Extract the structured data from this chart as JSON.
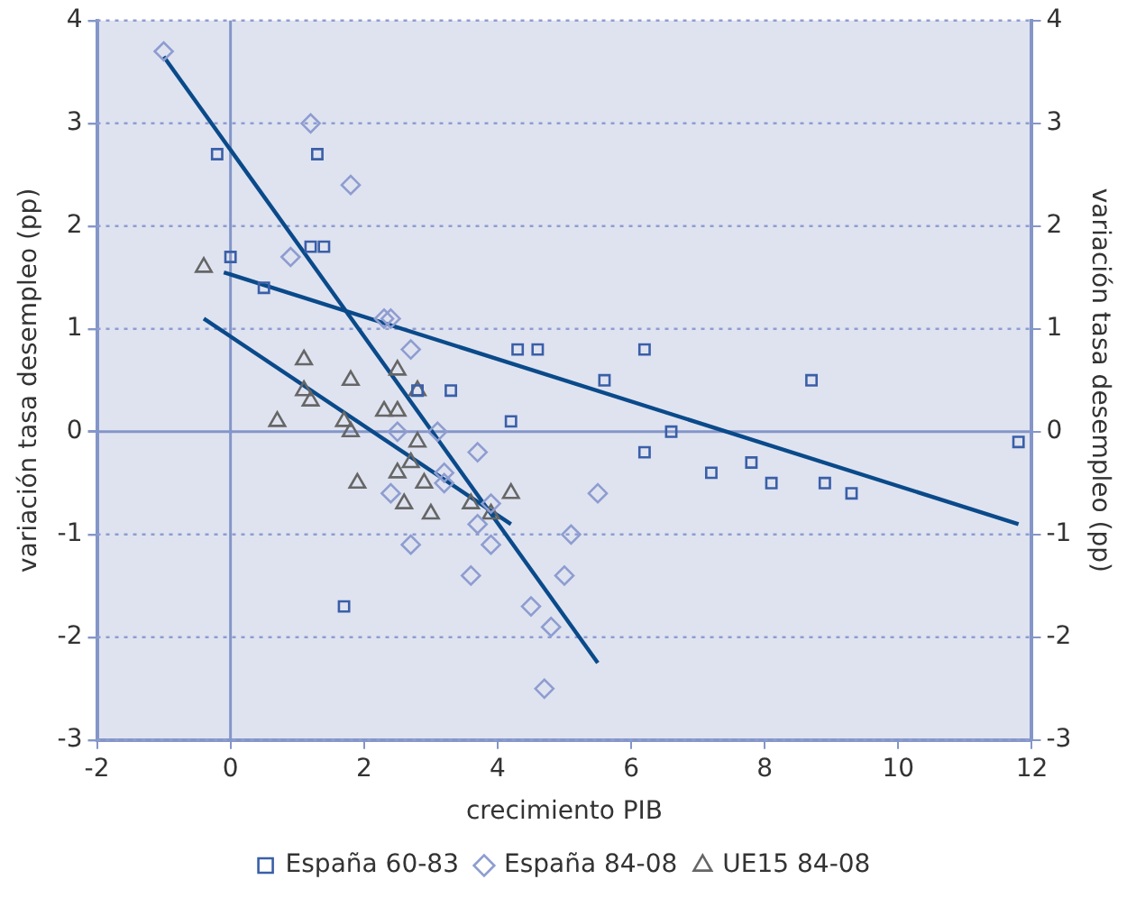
{
  "chart_data": {
    "type": "scatter",
    "xlabel": "crecimiento PIB",
    "ylabel": "variación tasa desempleo (pp)",
    "y2label": "variación tasa desempleo (pp)",
    "xlim": [
      -2,
      12
    ],
    "xticks": [
      -2,
      0,
      2,
      4,
      6,
      8,
      10,
      12
    ],
    "ylim": [
      -3,
      4
    ],
    "yticks": [
      -3,
      -2,
      -1,
      0,
      1,
      2,
      3,
      4
    ],
    "y2lim": [
      -3,
      4
    ],
    "y2ticks": [
      -3,
      -2,
      -1,
      0,
      1,
      2,
      3,
      4
    ],
    "grid": "y",
    "legend": "bottom",
    "ref_lines": [
      {
        "axis": "x",
        "value": 0
      }
    ],
    "series": [
      {
        "name": "España 60-83",
        "color": "#3a5fa8",
        "marker": "square",
        "x": [
          -0.2,
          1.3,
          0,
          1.2,
          1.4,
          0.5,
          2.8,
          3.3,
          1.7,
          4.3,
          4.6,
          6.2,
          5.6,
          8.7,
          4.2,
          6.6,
          6.2,
          11.8,
          7.2,
          7.8,
          8.1,
          8.9,
          9.3
        ],
        "values": [
          2.7,
          2.7,
          1.7,
          1.8,
          1.8,
          1.4,
          0.4,
          0.4,
          -1.7,
          0.8,
          0.8,
          0.8,
          0.5,
          0.5,
          0.1,
          0,
          -0.2,
          -0.1,
          -0.4,
          -0.3,
          -0.5,
          -0.5,
          -0.6
        ]
      },
      {
        "name": "España 84-08",
        "color": "#8e9dd0",
        "marker": "diamond",
        "x": [
          -1.0,
          1.2,
          1.8,
          0.9,
          2.3,
          2.4,
          2.7,
          2.5,
          3.1,
          3.2,
          3.2,
          2.4,
          2.7,
          3.7,
          5.5,
          3.9,
          3.7,
          3.9,
          3.6,
          5.1,
          5.0,
          4.5,
          4.8,
          4.7
        ],
        "values": [
          3.7,
          3.0,
          2.4,
          1.7,
          1.1,
          1.1,
          0.8,
          0,
          0,
          -0.4,
          -0.5,
          -0.6,
          -1.1,
          -0.2,
          -0.6,
          -0.7,
          -0.9,
          -1.1,
          -1.4,
          -1.0,
          -1.4,
          -1.7,
          -1.9,
          -2.5
        ]
      },
      {
        "name": "UE15 84-08",
        "color": "#666666",
        "marker": "triangle",
        "x": [
          -0.4,
          1.1,
          0.7,
          1.1,
          1.2,
          1.8,
          1.7,
          1.8,
          2.3,
          2.5,
          2.5,
          2.8,
          1.9,
          2.8,
          2.7,
          2.5,
          2.9,
          2.6,
          3.0,
          3.6,
          3.9,
          4.2
        ],
        "values": [
          1.6,
          0.7,
          0.1,
          0.4,
          0.3,
          0.5,
          0.1,
          0,
          0.2,
          0.2,
          0.6,
          0.4,
          -0.5,
          -0.1,
          -0.3,
          -0.4,
          -0.5,
          -0.7,
          -0.8,
          -0.7,
          -0.8,
          -0.6
        ]
      },
      {
        "type": "line",
        "color": "#0a4a8a",
        "marker": "none",
        "x": [
          -0.1,
          11.8
        ],
        "values": [
          1.55,
          -0.9
        ]
      },
      {
        "type": "line",
        "color": "#0a4a8a",
        "marker": "none",
        "x": [
          -1.0,
          5.5
        ],
        "values": [
          3.65,
          -2.25
        ]
      },
      {
        "type": "line",
        "color": "#0a4a8a",
        "marker": "none",
        "x": [
          -0.4,
          4.2
        ],
        "values": [
          1.1,
          -0.9
        ]
      }
    ]
  }
}
